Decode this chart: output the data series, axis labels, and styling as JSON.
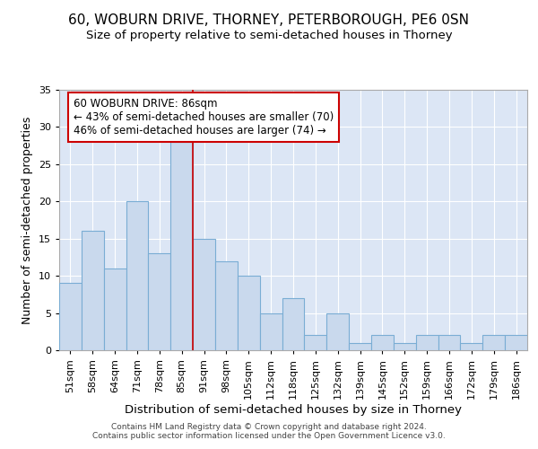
{
  "title": "60, WOBURN DRIVE, THORNEY, PETERBOROUGH, PE6 0SN",
  "subtitle": "Size of property relative to semi-detached houses in Thorney",
  "xlabel": "Distribution of semi-detached houses by size in Thorney",
  "ylabel": "Number of semi-detached properties",
  "categories": [
    "51sqm",
    "58sqm",
    "64sqm",
    "71sqm",
    "78sqm",
    "85sqm",
    "91sqm",
    "98sqm",
    "105sqm",
    "112sqm",
    "118sqm",
    "125sqm",
    "132sqm",
    "139sqm",
    "145sqm",
    "152sqm",
    "159sqm",
    "166sqm",
    "172sqm",
    "179sqm",
    "186sqm"
  ],
  "values": [
    9,
    16,
    11,
    20,
    13,
    28,
    15,
    12,
    10,
    5,
    7,
    2,
    5,
    1,
    2,
    1,
    2,
    2,
    1,
    2,
    2
  ],
  "bar_color": "#c9d9ed",
  "bar_edge_color": "#7aadd4",
  "bar_width": 1.0,
  "property_line_x": 5.5,
  "property_line_color": "#cc0000",
  "annotation_text": "60 WOBURN DRIVE: 86sqm\n← 43% of semi-detached houses are smaller (70)\n46% of semi-detached houses are larger (74) →",
  "annotation_box_color": "#ffffff",
  "annotation_box_edge_color": "#cc0000",
  "ylim": [
    0,
    35
  ],
  "yticks": [
    0,
    5,
    10,
    15,
    20,
    25,
    30,
    35
  ],
  "background_color": "#dce6f5",
  "title_fontsize": 11,
  "subtitle_fontsize": 9.5,
  "xlabel_fontsize": 9.5,
  "ylabel_fontsize": 9,
  "tick_fontsize": 8,
  "footer_text": "Contains HM Land Registry data © Crown copyright and database right 2024.\nContains public sector information licensed under the Open Government Licence v3.0."
}
